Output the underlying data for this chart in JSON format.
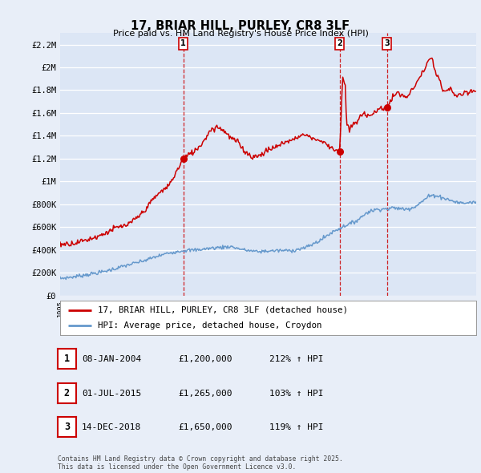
{
  "title": "17, BRIAR HILL, PURLEY, CR8 3LF",
  "subtitle": "Price paid vs. HM Land Registry's House Price Index (HPI)",
  "ylim": [
    0,
    2300000
  ],
  "yticks": [
    0,
    200000,
    400000,
    600000,
    800000,
    1000000,
    1200000,
    1400000,
    1600000,
    1800000,
    2000000,
    2200000
  ],
  "ytick_labels": [
    "£0",
    "£200K",
    "£400K",
    "£600K",
    "£800K",
    "£1M",
    "£1.2M",
    "£1.4M",
    "£1.6M",
    "£1.8M",
    "£2M",
    "£2.2M"
  ],
  "sale_color": "#cc0000",
  "hpi_color": "#6699cc",
  "sale_label": "17, BRIAR HILL, PURLEY, CR8 3LF (detached house)",
  "hpi_label": "HPI: Average price, detached house, Croydon",
  "transactions": [
    {
      "num": 1,
      "date": "08-JAN-2004",
      "x": 2004.03,
      "price": 1200000,
      "pct": "212%",
      "dir": "↑"
    },
    {
      "num": 2,
      "date": "01-JUL-2015",
      "x": 2015.5,
      "price": 1265000,
      "pct": "103%",
      "dir": "↑"
    },
    {
      "num": 3,
      "date": "14-DEC-2018",
      "x": 2018.96,
      "price": 1650000,
      "pct": "119%",
      "dir": "↑"
    }
  ],
  "footnote1": "Contains HM Land Registry data © Crown copyright and database right 2025.",
  "footnote2": "This data is licensed under the Open Government Licence v3.0.",
  "background_color": "#e8eef8",
  "plot_bg_color": "#dce6f5"
}
